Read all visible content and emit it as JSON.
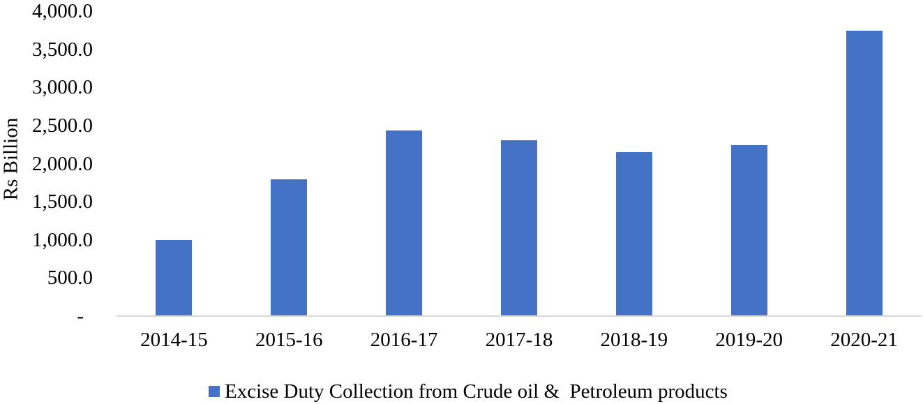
{
  "chart_data": {
    "type": "bar",
    "title": "",
    "categories": [
      "2014-15",
      "2015-16",
      "2016-17",
      "2017-18",
      "2018-19",
      "2019-20",
      "2020-21"
    ],
    "values": [
      990,
      1785,
      2425,
      2295,
      2145,
      2230,
      3730
    ],
    "series": [
      {
        "name": "Excise Duty Collection from Crude oil &  Petroleum products",
        "values": [
          990,
          1785,
          2425,
          2295,
          2145,
          2230,
          3730
        ]
      }
    ],
    "legend": "Excise Duty Collection from Crude oil &  Petroleum products",
    "legend_position": "bottom",
    "xlabel": "",
    "ylabel": "Rs Billion",
    "ylim": [
      0,
      4000
    ],
    "ytick_interval": 500,
    "yticks": [
      {
        "label": "4,000.0",
        "value": 4000
      },
      {
        "label": "3,500.0",
        "value": 3500
      },
      {
        "label": "3,000.0",
        "value": 3000
      },
      {
        "label": "2,500.0",
        "value": 2500
      },
      {
        "label": "2,000.0",
        "value": 2000
      },
      {
        "label": "1,500.0",
        "value": 1500
      },
      {
        "label": "1,000.0",
        "value": 1000
      },
      {
        "label": "500.0",
        "value": 500
      },
      {
        "label": "-",
        "value": 0
      }
    ],
    "grid": false,
    "colors": {
      "bar": "#4472C4",
      "axis_line": "#D9D9D9",
      "text": "#000000",
      "background": "#FFFFFF"
    }
  }
}
